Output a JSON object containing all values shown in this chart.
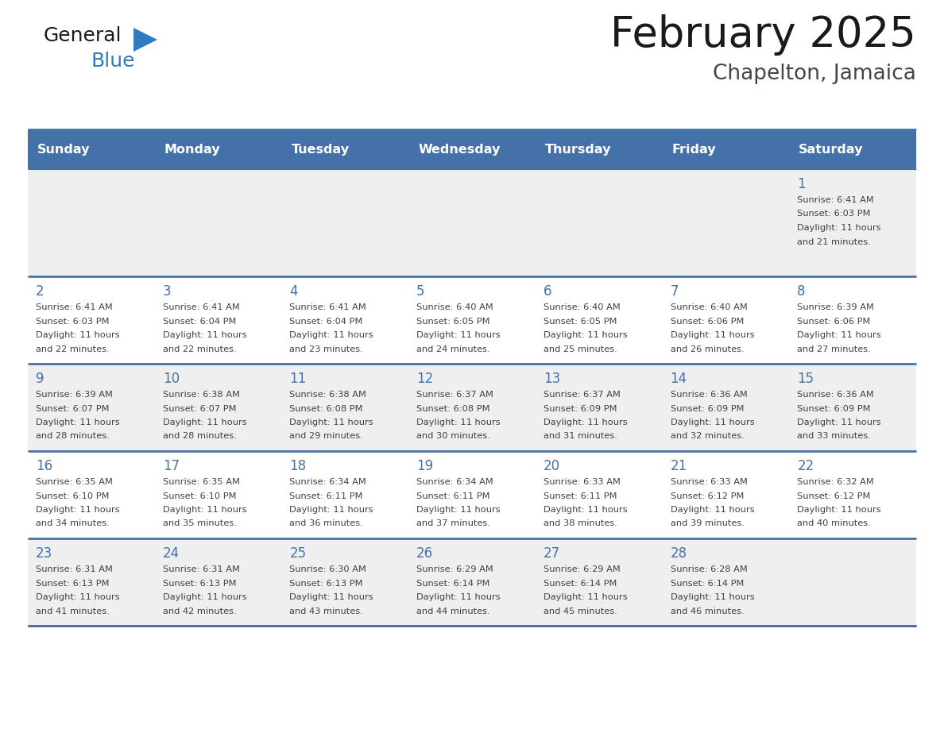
{
  "title": "February 2025",
  "subtitle": "Chapelton, Jamaica",
  "days_of_week": [
    "Sunday",
    "Monday",
    "Tuesday",
    "Wednesday",
    "Thursday",
    "Friday",
    "Saturday"
  ],
  "header_bg": "#4472A8",
  "header_text": "#FFFFFF",
  "cell_bg_row0": "#EFEFEF",
  "cell_bg_row1": "#FFFFFF",
  "cell_bg_row2": "#EFEFEF",
  "cell_bg_row3": "#FFFFFF",
  "cell_bg_row4": "#EFEFEF",
  "day_number_color": "#4472A8",
  "info_text_color": "#404040",
  "border_color": "#4472A8",
  "title_color": "#1a1a1a",
  "subtitle_color": "#444444",
  "logo_general_color": "#1a1a1a",
  "logo_blue_color": "#2E7BBF",
  "calendar": [
    [
      null,
      null,
      null,
      null,
      null,
      null,
      1
    ],
    [
      2,
      3,
      4,
      5,
      6,
      7,
      8
    ],
    [
      9,
      10,
      11,
      12,
      13,
      14,
      15
    ],
    [
      16,
      17,
      18,
      19,
      20,
      21,
      22
    ],
    [
      23,
      24,
      25,
      26,
      27,
      28,
      null
    ]
  ],
  "sunrise": {
    "1": "6:41 AM",
    "2": "6:41 AM",
    "3": "6:41 AM",
    "4": "6:41 AM",
    "5": "6:40 AM",
    "6": "6:40 AM",
    "7": "6:40 AM",
    "8": "6:39 AM",
    "9": "6:39 AM",
    "10": "6:38 AM",
    "11": "6:38 AM",
    "12": "6:37 AM",
    "13": "6:37 AM",
    "14": "6:36 AM",
    "15": "6:36 AM",
    "16": "6:35 AM",
    "17": "6:35 AM",
    "18": "6:34 AM",
    "19": "6:34 AM",
    "20": "6:33 AM",
    "21": "6:33 AM",
    "22": "6:32 AM",
    "23": "6:31 AM",
    "24": "6:31 AM",
    "25": "6:30 AM",
    "26": "6:29 AM",
    "27": "6:29 AM",
    "28": "6:28 AM"
  },
  "sunset": {
    "1": "6:03 PM",
    "2": "6:03 PM",
    "3": "6:04 PM",
    "4": "6:04 PM",
    "5": "6:05 PM",
    "6": "6:05 PM",
    "7": "6:06 PM",
    "8": "6:06 PM",
    "9": "6:07 PM",
    "10": "6:07 PM",
    "11": "6:08 PM",
    "12": "6:08 PM",
    "13": "6:09 PM",
    "14": "6:09 PM",
    "15": "6:09 PM",
    "16": "6:10 PM",
    "17": "6:10 PM",
    "18": "6:11 PM",
    "19": "6:11 PM",
    "20": "6:11 PM",
    "21": "6:12 PM",
    "22": "6:12 PM",
    "23": "6:13 PM",
    "24": "6:13 PM",
    "25": "6:13 PM",
    "26": "6:14 PM",
    "27": "6:14 PM",
    "28": "6:14 PM"
  },
  "daylight_minutes": {
    "1": 21,
    "2": 22,
    "3": 22,
    "4": 23,
    "5": 24,
    "6": 25,
    "7": 26,
    "8": 27,
    "9": 28,
    "10": 28,
    "11": 29,
    "12": 30,
    "13": 31,
    "14": 32,
    "15": 33,
    "16": 34,
    "17": 35,
    "18": 36,
    "19": 37,
    "20": 38,
    "21": 39,
    "22": 40,
    "23": 41,
    "24": 42,
    "25": 43,
    "26": 44,
    "27": 45,
    "28": 46
  }
}
